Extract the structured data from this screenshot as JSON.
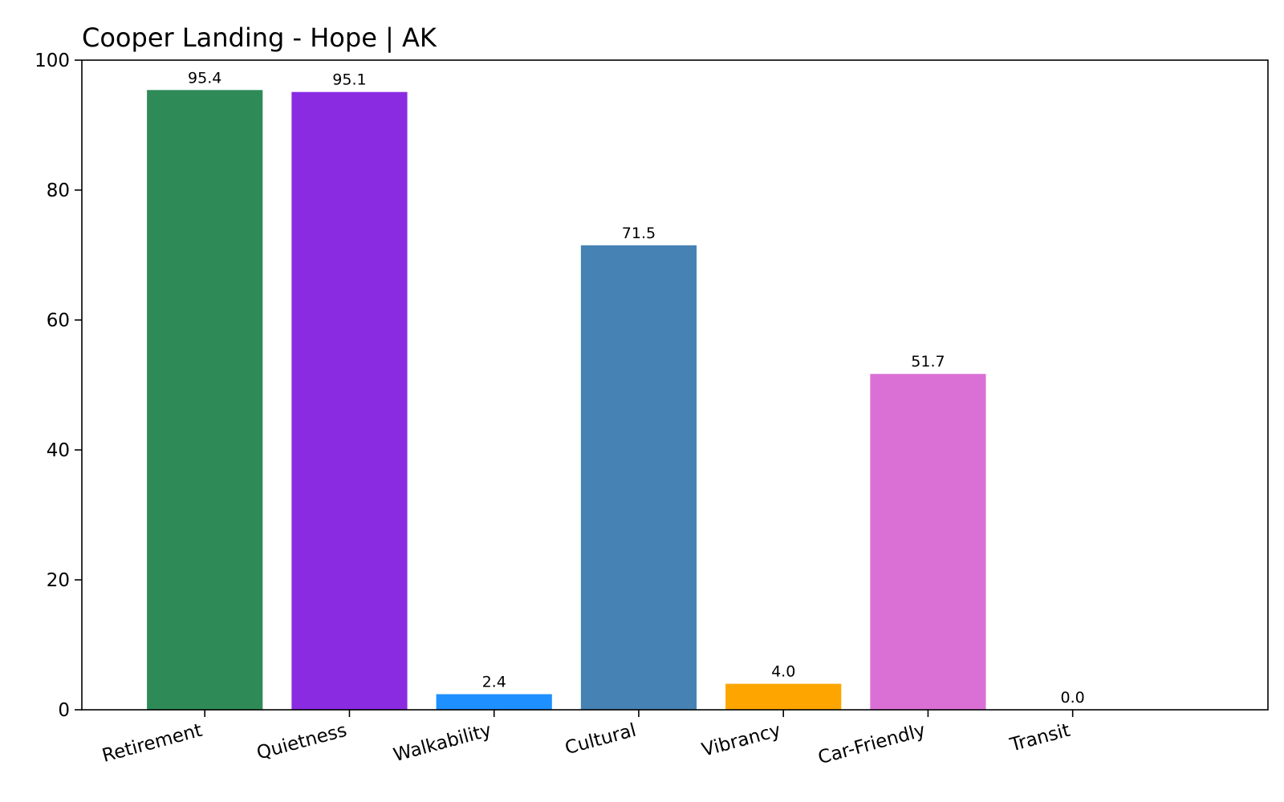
{
  "chart_data": {
    "type": "bar",
    "title": "Cooper Landing - Hope | AK",
    "xlabel": "",
    "ylabel": "",
    "categories": [
      "Retirement",
      "Quietness",
      "Walkability",
      "Cultural",
      "Vibrancy",
      "Car-Friendly",
      "Transit"
    ],
    "values": [
      95.4,
      95.1,
      2.4,
      71.5,
      4.0,
      51.7,
      0.0
    ],
    "value_labels": [
      "95.4",
      "95.1",
      "2.4",
      "71.5",
      "4.0",
      "51.7",
      "0.0"
    ],
    "colors": [
      "#2e8b57",
      "#8a2be2",
      "#1e90ff",
      "#4682b4",
      "#ffa500",
      "#da70d6",
      "#808080"
    ],
    "ylim": [
      0,
      100
    ],
    "yticks": [
      0,
      20,
      40,
      60,
      80,
      100
    ],
    "grid": false,
    "legend": "none"
  }
}
